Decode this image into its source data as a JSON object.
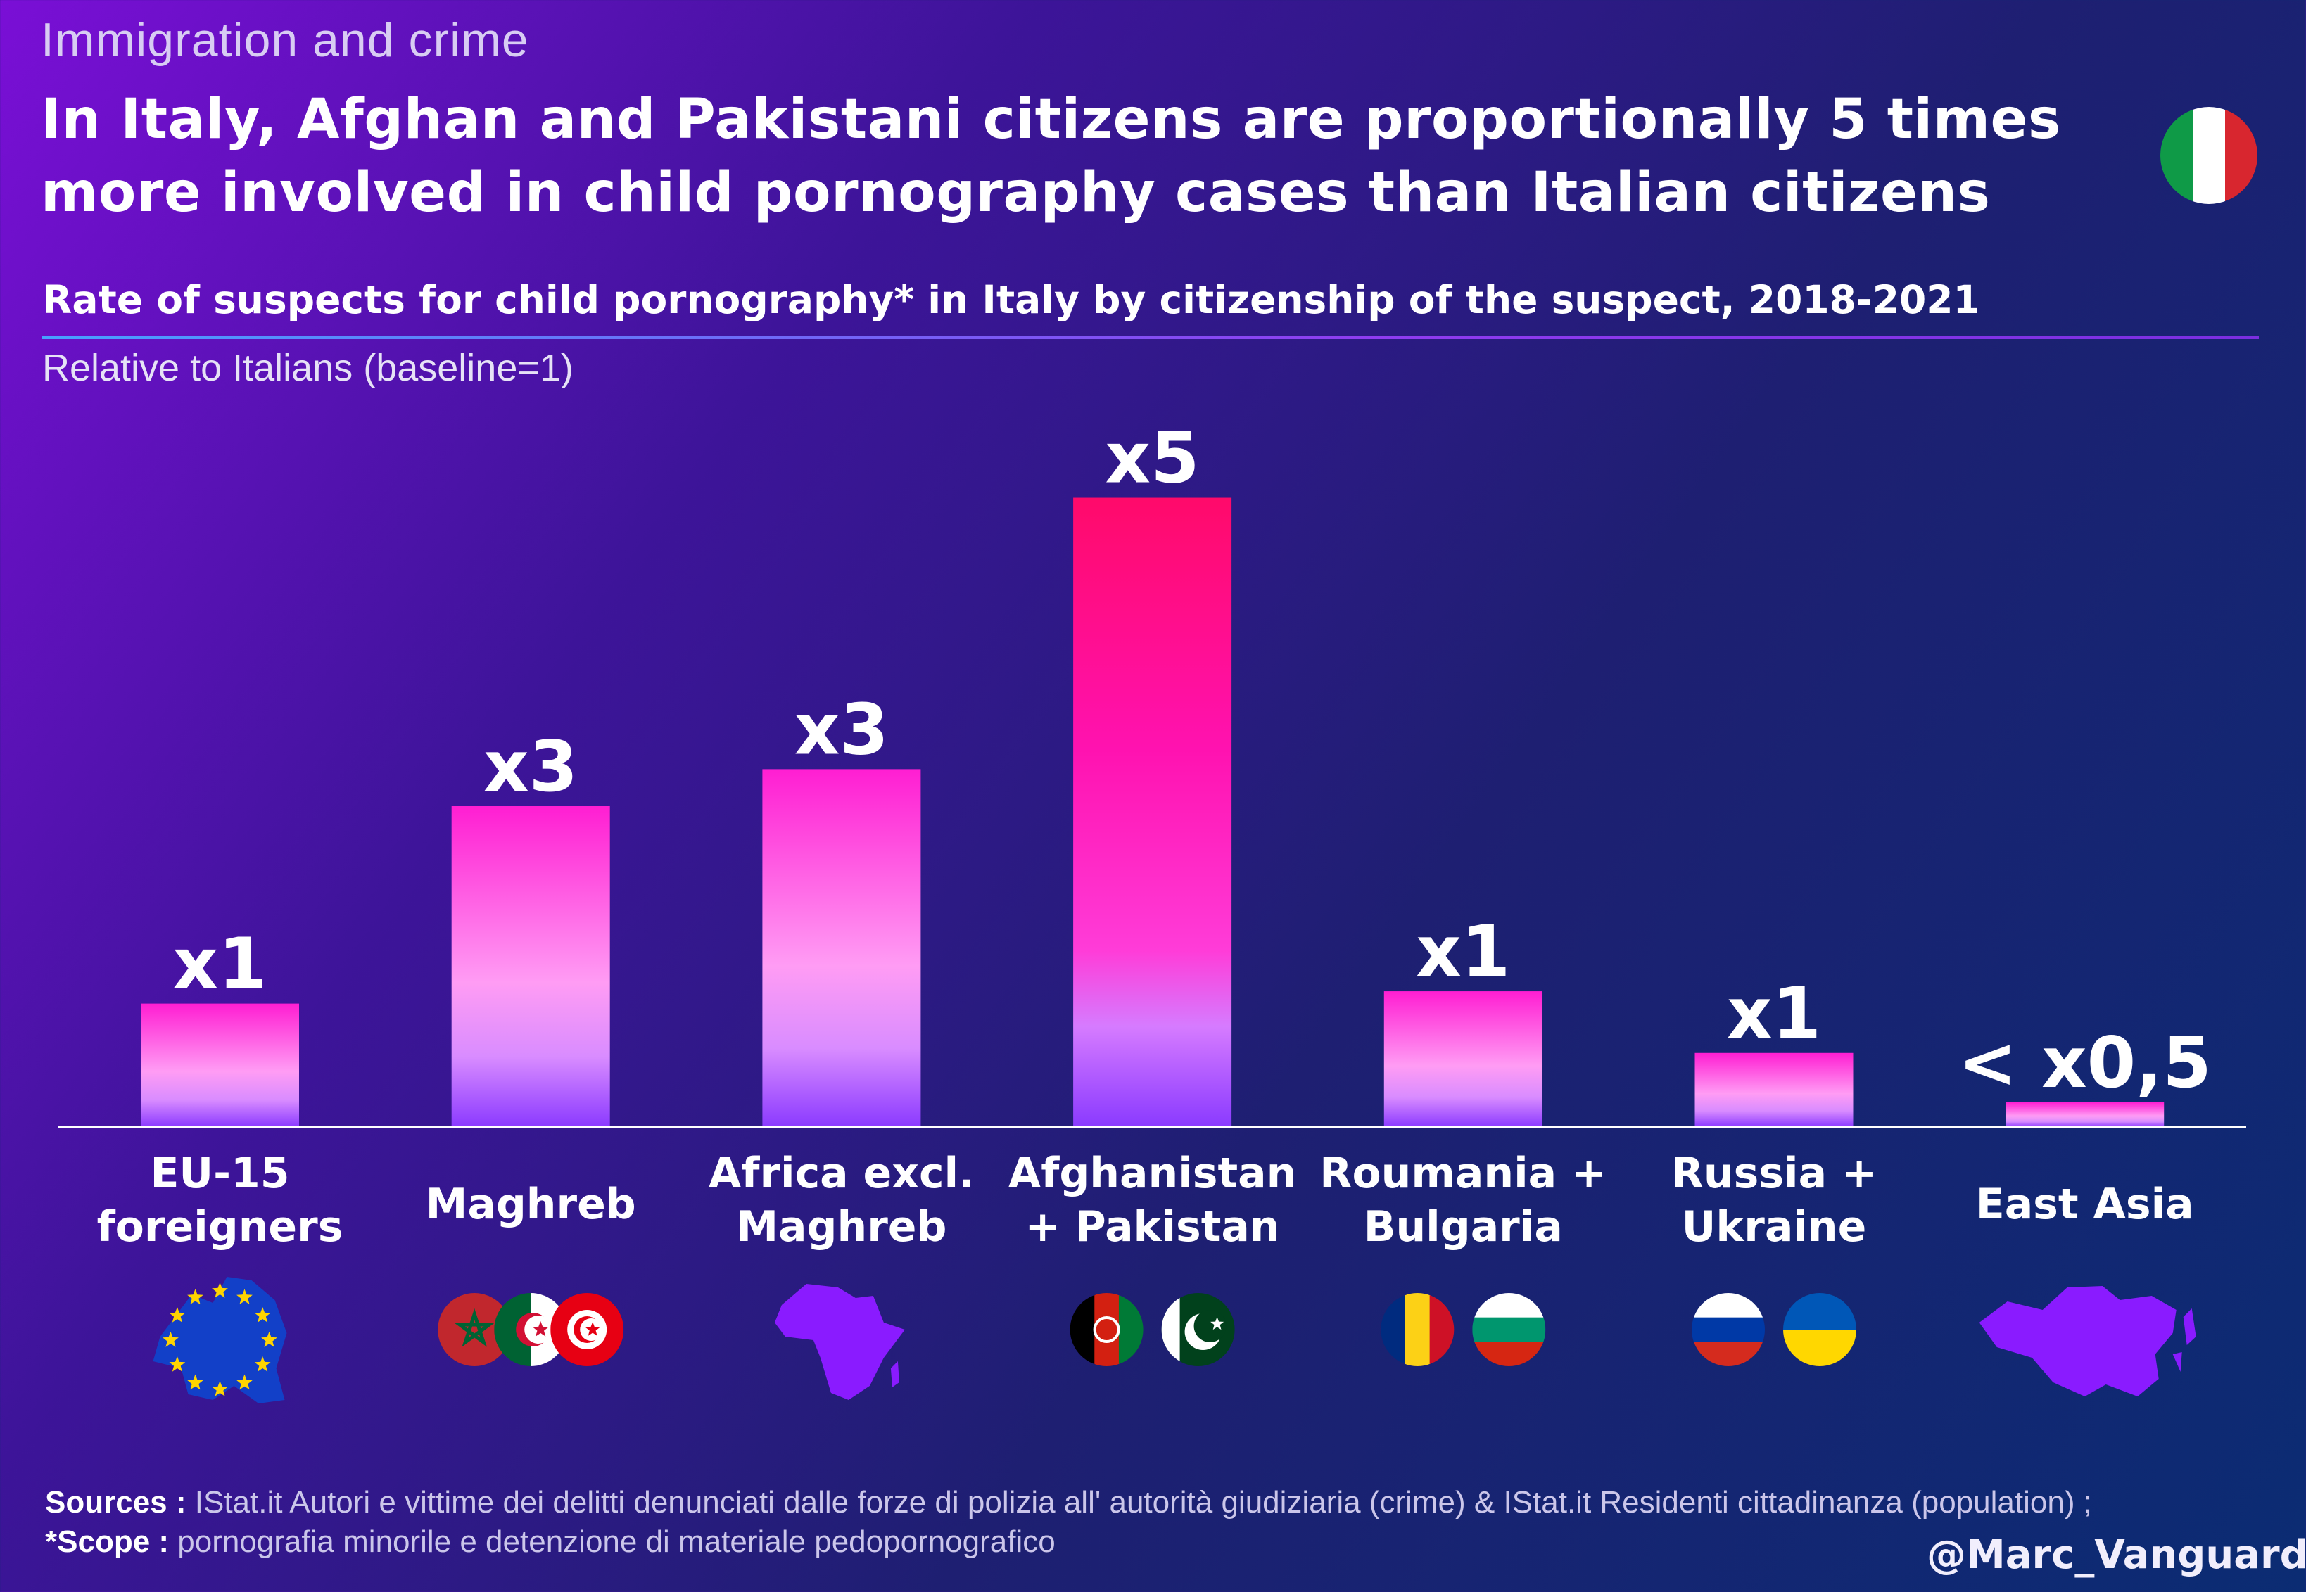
{
  "header": {
    "category": "Immigration and crime",
    "headline": "In Italy, Afghan and Pakistani citizens are proportionally 5 times more involved in child pornography cases than Italian citizens",
    "subtitle": "Rate of suspects for child pornography* in Italy by citizenship of the suspect, 2018-2021",
    "unit_note": "Relative to Italians (baseline=1)"
  },
  "chart_data": {
    "type": "bar",
    "title": "Rate of suspects for child pornography* in Italy by citizenship of the suspect, 2018-2021",
    "ylabel": "Relative to Italians (baseline=1)",
    "xlabel": "",
    "ylim": [
      0,
      5.2
    ],
    "grid": false,
    "legend": "none",
    "categories": [
      [
        "EU-15",
        "foreigners"
      ],
      [
        "Maghreb"
      ],
      [
        "Africa excl.",
        "Maghreb"
      ],
      [
        "Afghanistan",
        "+ Pakistan"
      ],
      [
        "Roumania +",
        "Bulgaria"
      ],
      [
        "Russia +",
        "Ukraine"
      ],
      [
        "East Asia"
      ]
    ],
    "values": [
      1.0,
      2.6,
      2.9,
      5.1,
      1.1,
      0.6,
      0.2
    ],
    "data_labels": [
      "x1",
      "x3",
      "x3",
      "x5",
      "x1",
      "x1",
      "< x0,5"
    ],
    "icons": [
      [
        "eu-map-icon"
      ],
      [
        "morocco-flag-icon",
        "algeria-flag-icon",
        "tunisia-flag-icon"
      ],
      [
        "africa-map-icon"
      ],
      [
        "afghanistan-flag-icon",
        "pakistan-flag-icon"
      ],
      [
        "romania-flag-icon",
        "bulgaria-flag-icon"
      ],
      [
        "russia-flag-icon",
        "ukraine-flag-icon"
      ],
      [
        "east-asia-map-icon"
      ]
    ]
  },
  "colors": {
    "bar_top": "#ff1fcf",
    "bar_mid": "#ff9cf4",
    "bar_bottom": "#8e3cff",
    "highlight_top": "#ff0a6e",
    "highlight_mid": "#ff22c8",
    "map_purple": "#8a1bff",
    "eu_blue": "#1240c8",
    "eu_star": "#ffd400"
  },
  "footer": {
    "sources_label": "Sources :",
    "sources_text": " IStat.it Autori e vittime dei delitti denunciati dalle forze di polizia all' autorità giudiziaria (crime) & IStat.it Residenti cittadinanza (population) ; ",
    "scope_label": "*Scope :",
    "scope_text": " pornografia minorile e detenzione di materiale pedopornografico",
    "handle": "@Marc_Vanguard_i"
  }
}
